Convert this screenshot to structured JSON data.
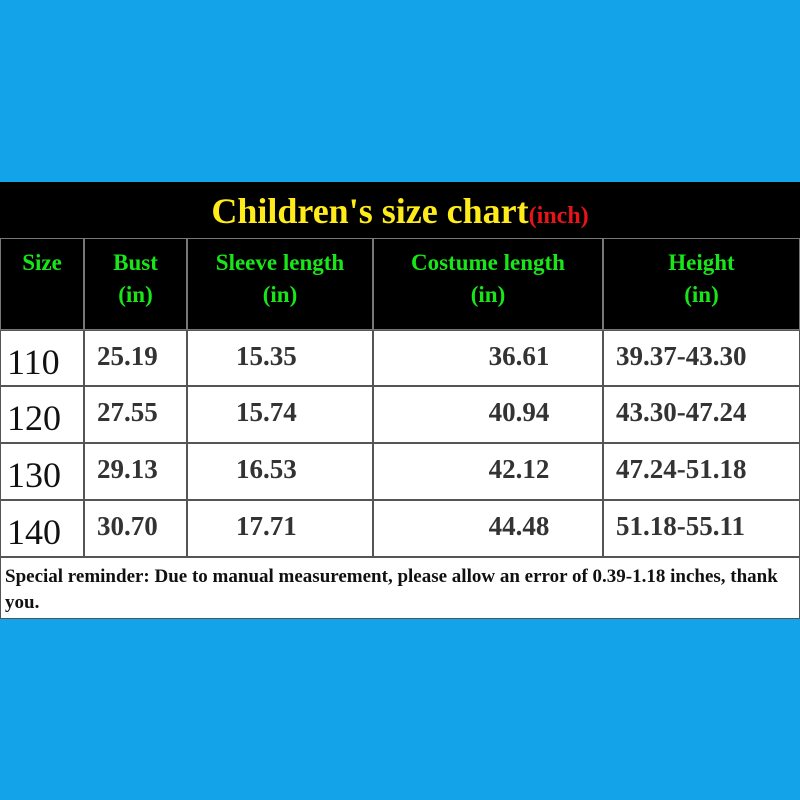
{
  "title": "Children's size chart",
  "title_unit": "(inch)",
  "header": [
    {
      "label": "Size"
    },
    {
      "label": "Bust",
      "unit": "(in)"
    },
    {
      "label": "Sleeve length",
      "unit": "(in)"
    },
    {
      "label": "Costume length",
      "unit": "(in)"
    },
    {
      "label": "Height",
      "unit": "(in)"
    }
  ],
  "rows": [
    [
      "110",
      "25.19",
      "15.35",
      "36.61",
      "39.37-43.30"
    ],
    [
      "120",
      "27.55",
      "15.74",
      "40.94",
      "43.30-47.24"
    ],
    [
      "130",
      "29.13",
      "16.53",
      "42.12",
      "47.24-51.18"
    ],
    [
      "140",
      "30.70",
      "17.71",
      "44.48",
      "51.18-55.11"
    ]
  ],
  "note": "Special reminder: Due to manual measurement, please allow an error of 0.39-1.18 inches, thank you."
}
